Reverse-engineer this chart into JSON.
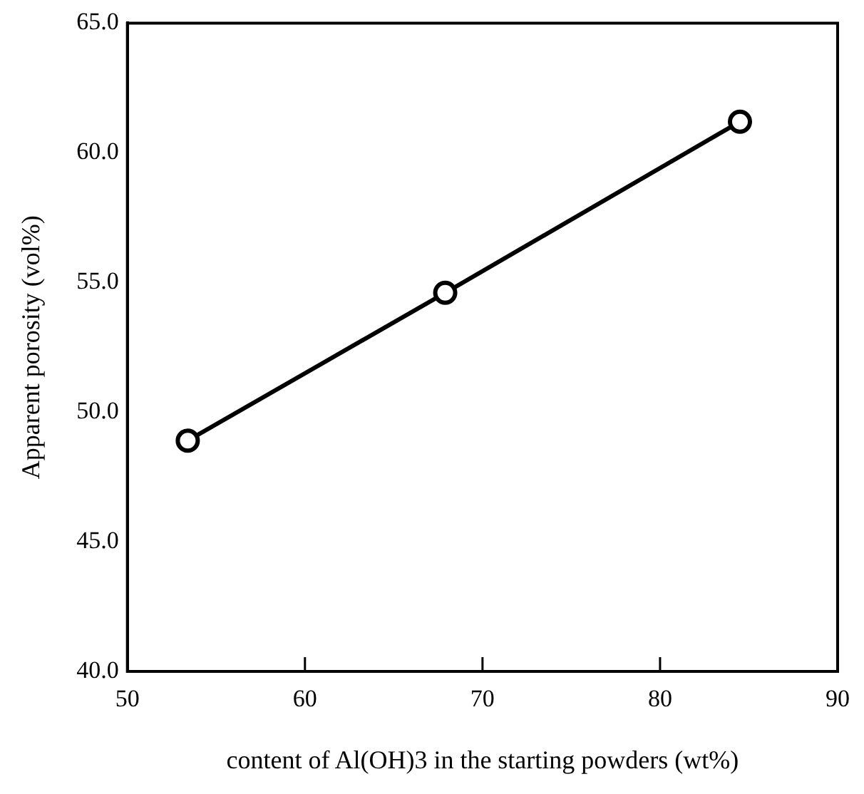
{
  "chart_data": {
    "type": "line",
    "xlabel": "content of Al(OH)3 in the starting powders (wt%)",
    "ylabel": "Apparent porosity (vol%)",
    "x": [
      53.4,
      67.9,
      84.5
    ],
    "series": [
      {
        "color": "#000000",
        "values": [
          48.9,
          54.6,
          61.2
        ]
      }
    ],
    "xlim": [
      50,
      90
    ],
    "xticks": [
      50,
      60,
      70,
      80,
      90
    ],
    "ylim": [
      40,
      65
    ],
    "yticks": [
      {
        "value": 40,
        "label": "40.0"
      },
      {
        "value": 45,
        "label": "45.0"
      },
      {
        "value": 50,
        "label": "50.0"
      },
      {
        "value": 55,
        "label": "55.0"
      },
      {
        "value": 60,
        "label": "60.0"
      },
      {
        "value": 65,
        "label": "65.0"
      }
    ],
    "grid": false,
    "legend": false,
    "marker": "circle",
    "line_style": "solid"
  }
}
